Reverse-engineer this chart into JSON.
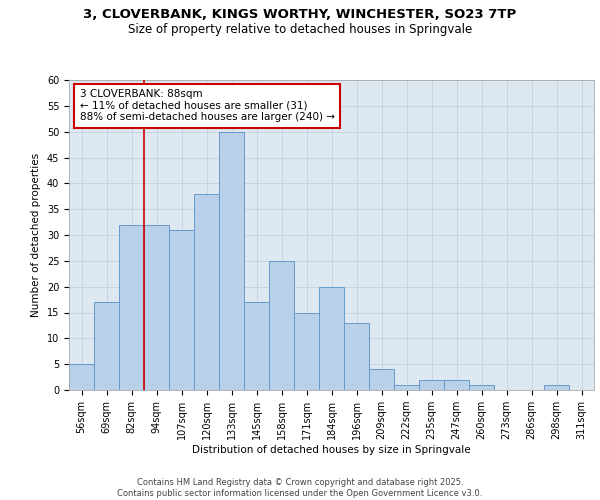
{
  "title_line1": "3, CLOVERBANK, KINGS WORTHY, WINCHESTER, SO23 7TP",
  "title_line2": "Size of property relative to detached houses in Springvale",
  "xlabel": "Distribution of detached houses by size in Springvale",
  "ylabel": "Number of detached properties",
  "bar_labels": [
    "56sqm",
    "69sqm",
    "82sqm",
    "94sqm",
    "107sqm",
    "120sqm",
    "133sqm",
    "145sqm",
    "158sqm",
    "171sqm",
    "184sqm",
    "196sqm",
    "209sqm",
    "222sqm",
    "235sqm",
    "247sqm",
    "260sqm",
    "273sqm",
    "286sqm",
    "298sqm",
    "311sqm"
  ],
  "bar_values": [
    5,
    17,
    32,
    32,
    31,
    38,
    50,
    17,
    25,
    15,
    20,
    13,
    4,
    1,
    2,
    2,
    1,
    0,
    0,
    1,
    0
  ],
  "bar_color": "#b8d0e8",
  "bar_edgecolor": "#6699cc",
  "background_color": "#dde8f0",
  "ylim": [
    0,
    60
  ],
  "yticks": [
    0,
    5,
    10,
    15,
    20,
    25,
    30,
    35,
    40,
    45,
    50,
    55,
    60
  ],
  "annotation_text": "3 CLOVERBANK: 88sqm\n← 11% of detached houses are smaller (31)\n88% of semi-detached houses are larger (240) →",
  "vline_position": 2.5,
  "annotation_box_color": "#ffffff",
  "annotation_box_edgecolor": "#cc0000",
  "vline_color": "#cc0000",
  "footer_line1": "Contains HM Land Registry data © Crown copyright and database right 2025.",
  "footer_line2": "Contains public sector information licensed under the Open Government Licence v3.0.",
  "title_fontsize": 9.5,
  "subtitle_fontsize": 8.5,
  "axis_label_fontsize": 7.5,
  "tick_fontsize": 7,
  "annotation_fontsize": 7.5,
  "footer_fontsize": 6
}
